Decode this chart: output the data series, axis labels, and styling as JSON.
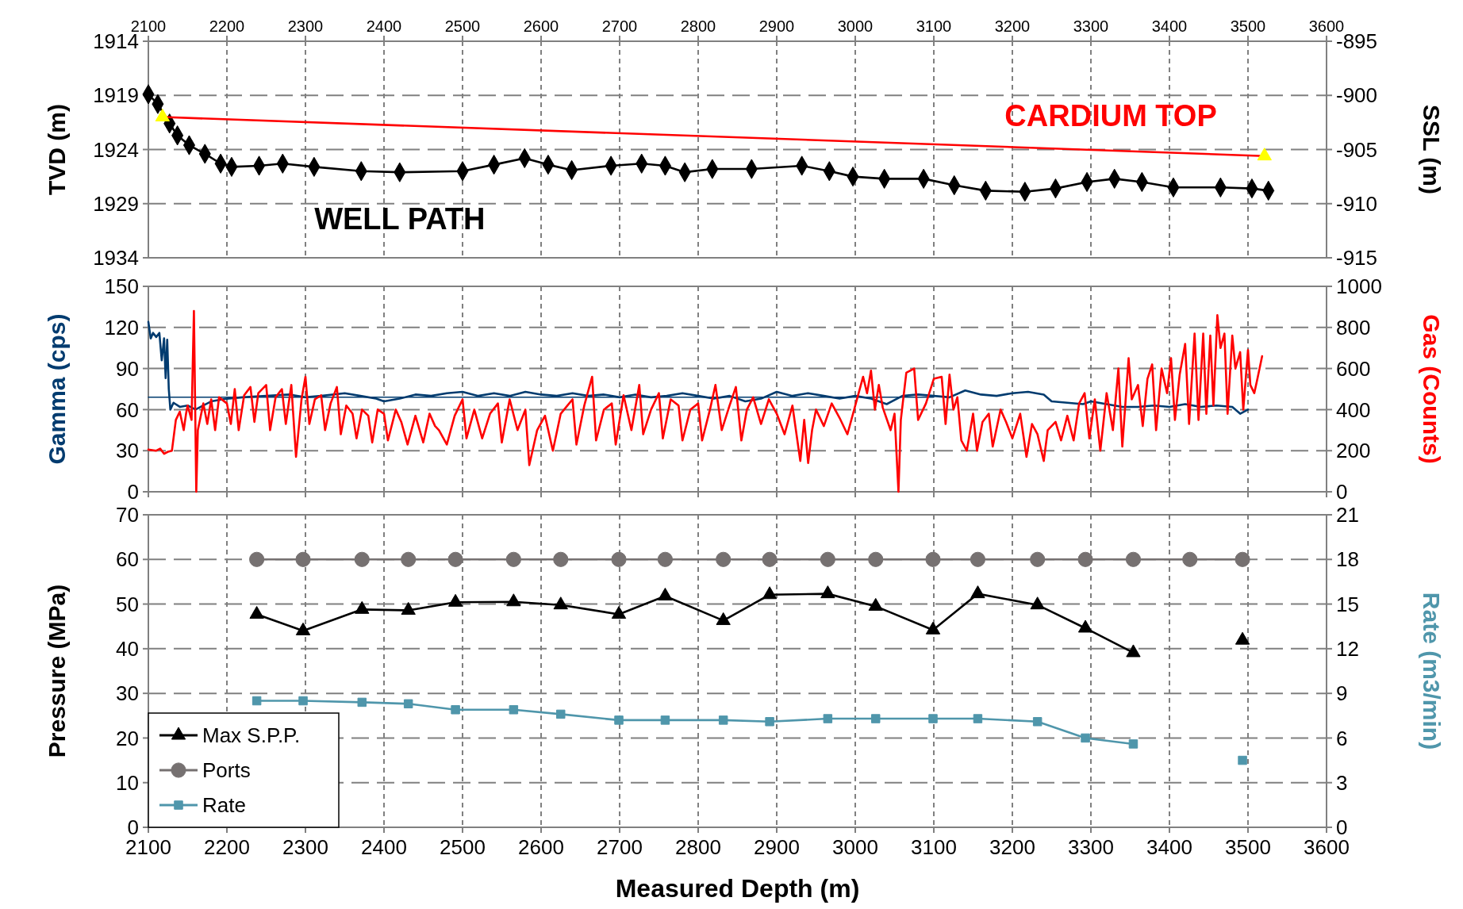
{
  "chart_data": [
    {
      "type": "line",
      "ylabel": "TVD (m)",
      "y2label": "SSL (m)",
      "xlim": [
        2100,
        3600
      ],
      "xticks": [
        2100,
        2200,
        2300,
        2400,
        2500,
        2600,
        2700,
        2800,
        2900,
        3000,
        3100,
        3200,
        3300,
        3400,
        3500,
        3600
      ],
      "ylim": [
        1934,
        1914
      ],
      "yticks": [
        1914,
        1919,
        1924,
        1929,
        1934
      ],
      "y2lim": [
        -915,
        -895
      ],
      "y2ticks": [
        -895,
        -900,
        -905,
        -910,
        -915
      ],
      "grid": true,
      "legend": false,
      "series": [
        {
          "name": "WELL PATH",
          "color": "#000000",
          "marker": "diamond",
          "x": [
            2100,
            2112,
            2127,
            2137,
            2152,
            2172,
            2192,
            2206,
            2241,
            2271,
            2311,
            2371,
            2420,
            2500,
            2540,
            2579,
            2609,
            2639,
            2689,
            2728,
            2758,
            2783,
            2818,
            2868,
            2932,
            2967,
            2997,
            3037,
            3087,
            3126,
            3166,
            3216,
            3255,
            3295,
            3330,
            3365,
            3405,
            3465,
            3505,
            3526
          ],
          "values": [
            1918.9,
            1919.8,
            1921.6,
            1922.7,
            1923.6,
            1924.4,
            1925.3,
            1925.6,
            1925.5,
            1925.3,
            1925.6,
            1926.0,
            1926.1,
            1926.0,
            1925.4,
            1924.8,
            1925.4,
            1925.9,
            1925.5,
            1925.3,
            1925.5,
            1926.1,
            1925.8,
            1925.8,
            1925.5,
            1926.0,
            1926.5,
            1926.7,
            1926.7,
            1927.3,
            1927.8,
            1927.9,
            1927.6,
            1927.0,
            1926.7,
            1927.0,
            1927.5,
            1927.5,
            1927.6,
            1927.8
          ]
        },
        {
          "name": "CARDIUM TOP",
          "color": "#ff0000",
          "marker": "triangle",
          "colors": [
            "#ffff00",
            "#ffff00"
          ],
          "x": [
            2118,
            3521
          ],
          "values": [
            1921.0,
            1924.6
          ]
        }
      ]
    },
    {
      "type": "line",
      "ylabel": "Gamma (cps)",
      "y2label": "Gas (Counts)",
      "xlim": [
        2100,
        3600
      ],
      "tick_labels": "y",
      "xticks": [
        2100,
        2200,
        2300,
        2400,
        2500,
        2600,
        2700,
        2800,
        2900,
        3000,
        3100,
        3200,
        3300,
        3400,
        3500,
        3600
      ],
      "ylim": [
        0,
        150
      ],
      "yticks": [
        0,
        30,
        60,
        90,
        120,
        150
      ],
      "y2lim": [
        0,
        1000
      ],
      "y2ticks": [
        0,
        200,
        400,
        600,
        800,
        1000
      ],
      "grid": true,
      "legend": false,
      "series": [
        {
          "color": "#003b6f",
          "x": [
            2100,
            2103,
            2106,
            2110,
            2114,
            2117,
            2120,
            2122,
            2124,
            2126,
            2128,
            2132,
            2140,
            2150,
            2160,
            2170,
            2180,
            2200,
            2220,
            2250,
            2280,
            2300,
            2320,
            2350,
            2370,
            2390,
            2400,
            2420,
            2440,
            2460,
            2480,
            2500,
            2520,
            2540,
            2560,
            2580,
            2600,
            2620,
            2640,
            2660,
            2680,
            2700,
            2720,
            2740,
            2760,
            2780,
            2800,
            2820,
            2840,
            2860,
            2880,
            2900,
            2920,
            2940,
            2960,
            2980,
            3000,
            3020,
            3040,
            3060,
            3080,
            3100,
            3120,
            3140,
            3160,
            3180,
            3200,
            3220,
            3240,
            3250,
            3270,
            3290,
            3300,
            3320,
            3340,
            3360,
            3380,
            3400,
            3420,
            3440,
            3460,
            3480,
            3490,
            3500
          ],
          "values": [
            124,
            112,
            116,
            113,
            116,
            96,
            112,
            83,
            111,
            75,
            60,
            65,
            62,
            63,
            60,
            63,
            66,
            68,
            69,
            70,
            71,
            69,
            70,
            72,
            70,
            68,
            66,
            68,
            71,
            70,
            72,
            73,
            70,
            72,
            70,
            73,
            71,
            70,
            72,
            70,
            71,
            69,
            71,
            69,
            70,
            72,
            70,
            68,
            70,
            66,
            68,
            73,
            70,
            72,
            70,
            68,
            70,
            68,
            64,
            70,
            71,
            70,
            69,
            74,
            71,
            70,
            72,
            73,
            71,
            66,
            65,
            64,
            66,
            64,
            62,
            62,
            63,
            62,
            64,
            62,
            63,
            62,
            57,
            60
          ]
        },
        {
          "color": "#003b6f",
          "x": [
            2100,
            3100
          ],
          "values": [
            69,
            69
          ]
        },
        {
          "color": "#ff0000",
          "axis": "y2",
          "x": [
            2100,
            2110,
            2115,
            2120,
            2125,
            2130,
            2135,
            2140,
            2145,
            2148,
            2150,
            2155,
            2158,
            2161,
            2163,
            2170,
            2175,
            2180,
            2185,
            2190,
            2200,
            2205,
            2210,
            2215,
            2222,
            2230,
            2235,
            2240,
            2250,
            2255,
            2262,
            2270,
            2275,
            2282,
            2288,
            2295,
            2300,
            2305,
            2312,
            2320,
            2325,
            2332,
            2340,
            2345,
            2352,
            2360,
            2365,
            2372,
            2380,
            2385,
            2392,
            2400,
            2405,
            2415,
            2422,
            2430,
            2440,
            2450,
            2458,
            2465,
            2470,
            2480,
            2490,
            2500,
            2505,
            2515,
            2525,
            2535,
            2545,
            2550,
            2560,
            2570,
            2580,
            2585,
            2595,
            2605,
            2615,
            2625,
            2640,
            2645,
            2655,
            2665,
            2670,
            2680,
            2690,
            2695,
            2705,
            2715,
            2725,
            2730,
            2740,
            2750,
            2755,
            2765,
            2775,
            2780,
            2790,
            2800,
            2805,
            2815,
            2822,
            2830,
            2840,
            2848,
            2855,
            2862,
            2870,
            2880,
            2890,
            2900,
            2910,
            2920,
            2930,
            2935,
            2940,
            2945,
            2950,
            2960,
            2970,
            2980,
            2990,
            3000,
            3010,
            3015,
            3020,
            3025,
            3030,
            3035,
            3045,
            3050,
            3055,
            3058,
            3065,
            3075,
            3080,
            3090,
            3100,
            3110,
            3115,
            3120,
            3125,
            3130,
            3135,
            3142,
            3150,
            3155,
            3162,
            3170,
            3175,
            3185,
            3192,
            3200,
            3210,
            3218,
            3225,
            3232,
            3240,
            3245,
            3255,
            3262,
            3270,
            3278,
            3285,
            3292,
            3298,
            3305,
            3312,
            3320,
            3328,
            3335,
            3340,
            3348,
            3352,
            3360,
            3366,
            3372,
            3378,
            3383,
            3390,
            3397,
            3402,
            3407,
            3413,
            3420,
            3425,
            3432,
            3437,
            3443,
            3447,
            3452,
            3456,
            3461,
            3465,
            3470,
            3474,
            3480,
            3484,
            3490,
            3494,
            3500,
            3503,
            3508,
            3512,
            3518
          ],
          "values": [
            205,
            200,
            210,
            185,
            195,
            200,
            350,
            390,
            300,
            380,
            420,
            350,
            880,
            0,
            300,
            430,
            330,
            450,
            300,
            460,
            430,
            330,
            500,
            300,
            470,
            510,
            340,
            480,
            520,
            300,
            460,
            500,
            330,
            520,
            170,
            450,
            560,
            330,
            450,
            470,
            300,
            430,
            510,
            280,
            420,
            380,
            260,
            400,
            370,
            240,
            400,
            380,
            250,
            400,
            340,
            230,
            370,
            240,
            380,
            320,
            300,
            230,
            370,
            450,
            260,
            400,
            260,
            380,
            430,
            240,
            450,
            300,
            400,
            130,
            300,
            370,
            200,
            380,
            450,
            230,
            420,
            560,
            250,
            400,
            430,
            230,
            470,
            300,
            520,
            280,
            400,
            480,
            260,
            450,
            420,
            250,
            400,
            430,
            250,
            400,
            520,
            300,
            420,
            510,
            250,
            400,
            460,
            330,
            450,
            380,
            280,
            420,
            150,
            350,
            140,
            300,
            400,
            320,
            430,
            360,
            280,
            420,
            560,
            480,
            590,
            400,
            520,
            410,
            300,
            380,
            0,
            350,
            580,
            600,
            350,
            430,
            550,
            560,
            330,
            570,
            400,
            460,
            250,
            200,
            380,
            200,
            340,
            380,
            220,
            400,
            340,
            260,
            380,
            170,
            330,
            280,
            150,
            300,
            340,
            250,
            370,
            250,
            430,
            480,
            260,
            450,
            200,
            480,
            300,
            600,
            220,
            650,
            450,
            520,
            320,
            550,
            620,
            300,
            600,
            480,
            650,
            350,
            570,
            720,
            330,
            770,
            350,
            770,
            380,
            760,
            420,
            860,
            700,
            770,
            380,
            760,
            600,
            680,
            400,
            690,
            520,
            480,
            550,
            660
          ]
        }
      ]
    },
    {
      "type": "line",
      "xlabel": "Measured Depth (m)",
      "ylabel": "Pressure (MPa)",
      "y2label": "Rate (m3/min)",
      "xlim": [
        2100,
        3600
      ],
      "xticks": [
        2100,
        2200,
        2300,
        2400,
        2500,
        2600,
        2700,
        2800,
        2900,
        3000,
        3100,
        3200,
        3300,
        3400,
        3500,
        3600
      ],
      "ylim": [
        0,
        70
      ],
      "yticks": [
        0,
        10,
        20,
        30,
        40,
        50,
        60,
        70
      ],
      "y2lim": [
        0,
        21
      ],
      "y2ticks": [
        0,
        3,
        6,
        9,
        12,
        15,
        18,
        21
      ],
      "grid": true,
      "legend": "bottom left",
      "x": [
        2238,
        2297,
        2372,
        2431,
        2491,
        2565,
        2625,
        2699,
        2758,
        2832,
        2891,
        2965,
        3026,
        3099,
        3156,
        3232,
        3293,
        3354,
        3426,
        3493
      ],
      "series": [
        {
          "name": "Max S.P.P.",
          "color": "#000000",
          "marker": "triangle",
          "values": [
            47.7,
            44.0,
            48.8,
            48.6,
            50.4,
            50.5,
            49.8,
            47.7,
            51.8,
            46.3,
            52.1,
            52.3,
            49.5,
            44.2,
            52.3,
            49.8,
            44.6,
            39.1,
            null,
            41.9
          ]
        },
        {
          "name": "Ports",
          "color": "#767171",
          "marker": "circle",
          "values": [
            60,
            60,
            60,
            60,
            60,
            60,
            60,
            60,
            60,
            60,
            60,
            60,
            60,
            60,
            60,
            60,
            60,
            60,
            60,
            60
          ]
        },
        {
          "name": "Rate",
          "color": "#4f96ab",
          "marker": "square",
          "axis": "y2",
          "values": [
            8.5,
            8.5,
            8.4,
            8.3,
            7.9,
            7.9,
            7.6,
            7.2,
            7.2,
            7.2,
            7.1,
            7.3,
            7.3,
            7.3,
            7.3,
            7.1,
            6.0,
            5.6,
            null,
            4.5
          ]
        }
      ]
    }
  ]
}
